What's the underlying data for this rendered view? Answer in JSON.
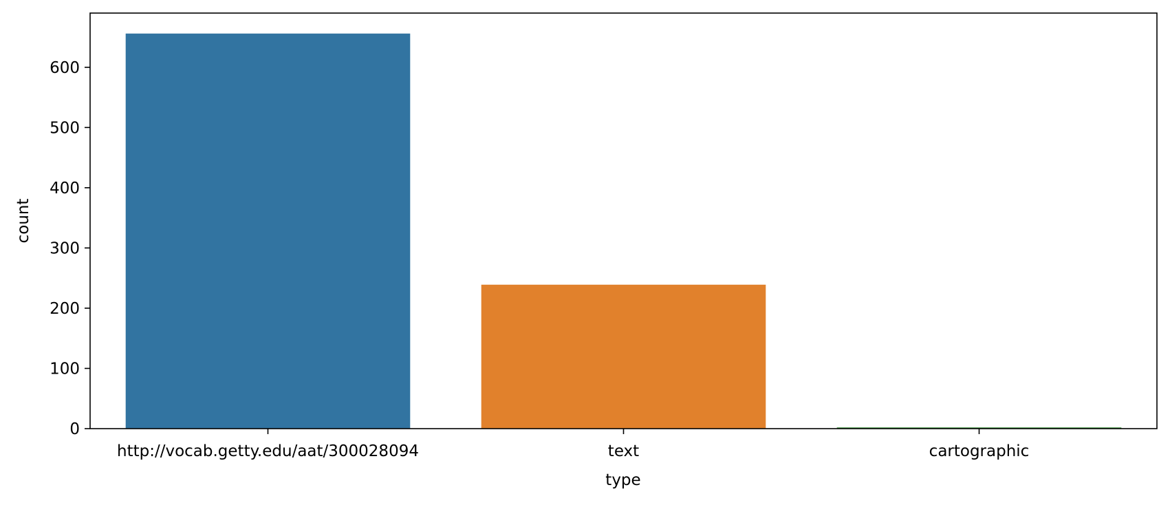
{
  "chart_data": {
    "type": "bar",
    "title": "",
    "xlabel": "type",
    "ylabel": "count",
    "categories": [
      "http://vocab.getty.edu/aat/300028094",
      "text",
      "cartographic"
    ],
    "values": [
      656,
      239,
      2
    ],
    "colors": [
      "#3274a1",
      "#e1812c",
      "#3a923a"
    ],
    "ylim": [
      0,
      690
    ],
    "yticks": [
      0,
      100,
      200,
      300,
      400,
      500,
      600
    ],
    "grid": false,
    "legend": "none"
  }
}
